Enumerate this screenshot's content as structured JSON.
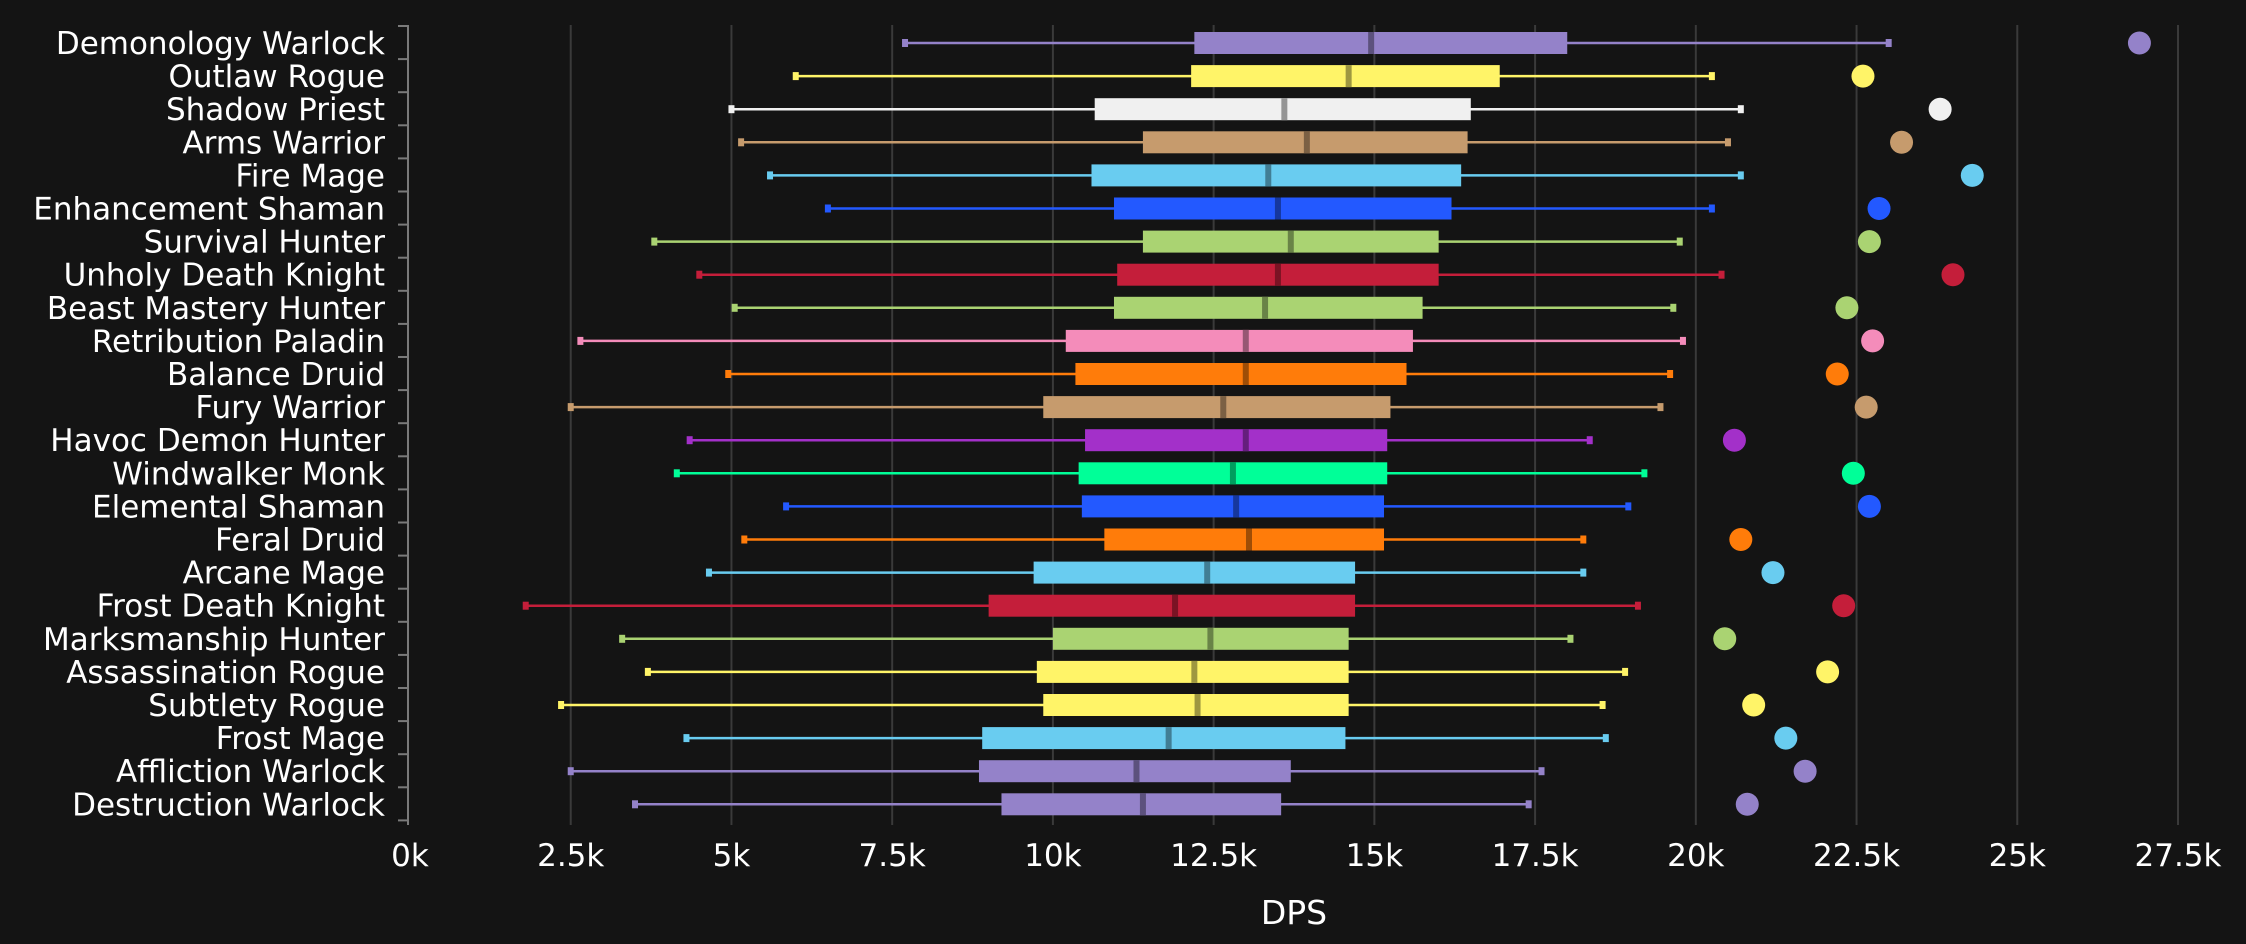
{
  "chart_data": {
    "type": "box",
    "title": "",
    "xlabel": "DPS",
    "ylabel": "",
    "xlim": [
      0,
      27500
    ],
    "x_ticks": [
      0,
      2500,
      5000,
      7500,
      10000,
      12500,
      15000,
      17500,
      20000,
      22500,
      25000,
      27500
    ],
    "x_tick_labels": [
      "0k",
      "2.5k",
      "5k",
      "7.5k",
      "10k",
      "12.5k",
      "15k",
      "17.5k",
      "20k",
      "22.5k",
      "25k",
      "27.5k"
    ],
    "grid": "vertical",
    "series": [
      {
        "name": "Demonology Warlock",
        "color": "#9482C9",
        "min": 7700,
        "q1": 12200,
        "median": 14950,
        "q3": 18000,
        "max": 23000,
        "top": 26900
      },
      {
        "name": "Outlaw Rogue",
        "color": "#FFF468",
        "min": 6000,
        "q1": 12150,
        "median": 14600,
        "q3": 16950,
        "max": 20250,
        "top": 22600
      },
      {
        "name": "Shadow Priest",
        "color": "#F0F0F0",
        "min": 5000,
        "q1": 10650,
        "median": 13600,
        "q3": 16500,
        "max": 20700,
        "top": 23800
      },
      {
        "name": "Arms Warrior",
        "color": "#C69B6D",
        "min": 5150,
        "q1": 11400,
        "median": 13950,
        "q3": 16450,
        "max": 20500,
        "top": 23200
      },
      {
        "name": "Fire Mage",
        "color": "#69CCF0",
        "min": 5600,
        "q1": 10600,
        "median": 13350,
        "q3": 16350,
        "max": 20700,
        "top": 24300
      },
      {
        "name": "Enhancement Shaman",
        "color": "#2359FF",
        "min": 6500,
        "q1": 10950,
        "median": 13500,
        "q3": 16200,
        "max": 20250,
        "top": 22850
      },
      {
        "name": "Survival Hunter",
        "color": "#AAD372",
        "min": 3800,
        "q1": 11400,
        "median": 13700,
        "q3": 16000,
        "max": 19750,
        "top": 22700
      },
      {
        "name": "Unholy Death Knight",
        "color": "#C41E3A",
        "min": 4500,
        "q1": 11000,
        "median": 13500,
        "q3": 16000,
        "max": 20400,
        "top": 24000
      },
      {
        "name": "Beast Mastery Hunter",
        "color": "#AAD372",
        "min": 5050,
        "q1": 10950,
        "median": 13300,
        "q3": 15750,
        "max": 19650,
        "top": 22350
      },
      {
        "name": "Retribution Paladin",
        "color": "#F48CBA",
        "min": 2650,
        "q1": 10200,
        "median": 13000,
        "q3": 15600,
        "max": 19800,
        "top": 22750
      },
      {
        "name": "Balance Druid",
        "color": "#FF7C0A",
        "min": 4950,
        "q1": 10350,
        "median": 13000,
        "q3": 15500,
        "max": 19600,
        "top": 22200
      },
      {
        "name": "Fury Warrior",
        "color": "#C69B6D",
        "min": 2500,
        "q1": 9850,
        "median": 12650,
        "q3": 15250,
        "max": 19450,
        "top": 22650
      },
      {
        "name": "Havoc Demon Hunter",
        "color": "#A330C9",
        "min": 4350,
        "q1": 10500,
        "median": 13000,
        "q3": 15200,
        "max": 18350,
        "top": 20600
      },
      {
        "name": "Windwalker Monk",
        "color": "#00FF98",
        "min": 4150,
        "q1": 10400,
        "median": 12800,
        "q3": 15200,
        "max": 19200,
        "top": 22450
      },
      {
        "name": "Elemental Shaman",
        "color": "#2359FF",
        "min": 5850,
        "q1": 10450,
        "median": 12850,
        "q3": 15150,
        "max": 18950,
        "top": 22700
      },
      {
        "name": "Feral Druid",
        "color": "#FF7C0A",
        "min": 5200,
        "q1": 10800,
        "median": 13050,
        "q3": 15150,
        "max": 18250,
        "top": 20700
      },
      {
        "name": "Arcane Mage",
        "color": "#69CCF0",
        "min": 4650,
        "q1": 9700,
        "median": 12400,
        "q3": 14700,
        "max": 18250,
        "top": 21200
      },
      {
        "name": "Frost Death Knight",
        "color": "#C41E3A",
        "min": 1800,
        "q1": 9000,
        "median": 11900,
        "q3": 14700,
        "max": 19100,
        "top": 22300
      },
      {
        "name": "Marksmanship Hunter",
        "color": "#AAD372",
        "min": 3300,
        "q1": 10000,
        "median": 12450,
        "q3": 14600,
        "max": 18050,
        "top": 20450
      },
      {
        "name": "Assassination Rogue",
        "color": "#FFF468",
        "min": 3700,
        "q1": 9750,
        "median": 12200,
        "q3": 14600,
        "max": 18900,
        "top": 22050
      },
      {
        "name": "Subtlety Rogue",
        "color": "#FFF468",
        "min": 2350,
        "q1": 9850,
        "median": 12250,
        "q3": 14600,
        "max": 18550,
        "top": 20900
      },
      {
        "name": "Frost Mage",
        "color": "#69CCF0",
        "min": 4300,
        "q1": 8900,
        "median": 11800,
        "q3": 14550,
        "max": 18600,
        "top": 21400
      },
      {
        "name": "Affliction Warlock",
        "color": "#9482C9",
        "min": 2500,
        "q1": 8850,
        "median": 11300,
        "q3": 13700,
        "max": 17600,
        "top": 21700
      },
      {
        "name": "Destruction Warlock",
        "color": "#9482C9",
        "min": 3500,
        "q1": 9200,
        "median": 11400,
        "q3": 13550,
        "max": 17400,
        "top": 20800
      }
    ]
  }
}
